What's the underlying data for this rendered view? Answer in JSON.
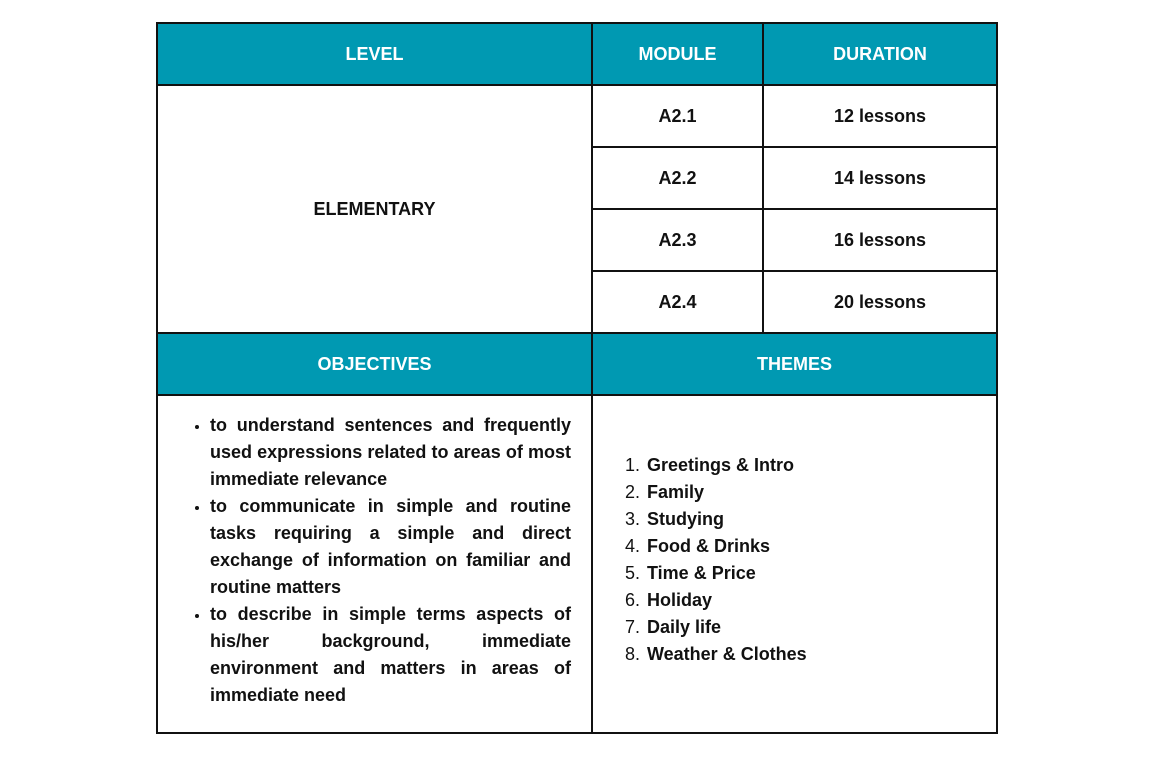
{
  "colors": {
    "header_bg": "#0099b2",
    "header_text": "#ffffff",
    "border": "#111111"
  },
  "headers": {
    "level": "LEVEL",
    "module": "MODULE",
    "duration": "DURATION",
    "objectives": "OBJECTIVES",
    "themes": "THEMES"
  },
  "level": "ELEMENTARY",
  "modules": [
    {
      "module": "A2.1",
      "duration": "12 lessons"
    },
    {
      "module": "A2.2",
      "duration": "14 lessons"
    },
    {
      "module": "A2.3",
      "duration": "16 lessons"
    },
    {
      "module": "A2.4",
      "duration": "20 lessons"
    }
  ],
  "objectives": [
    "to understand sentences and frequently used expressions related to areas of most immediate relevance",
    "to communicate in simple and routine tasks requiring a simple and direct exchange of information on familiar and routine matters",
    "to describe in simple terms aspects of his/her background, immediate environment and matters in areas of immediate need"
  ],
  "themes": [
    "Greetings & Intro",
    "Family",
    "Studying",
    "Food & Drinks",
    "Time & Price",
    "Holiday",
    "Daily life",
    "Weather & Clothes"
  ]
}
